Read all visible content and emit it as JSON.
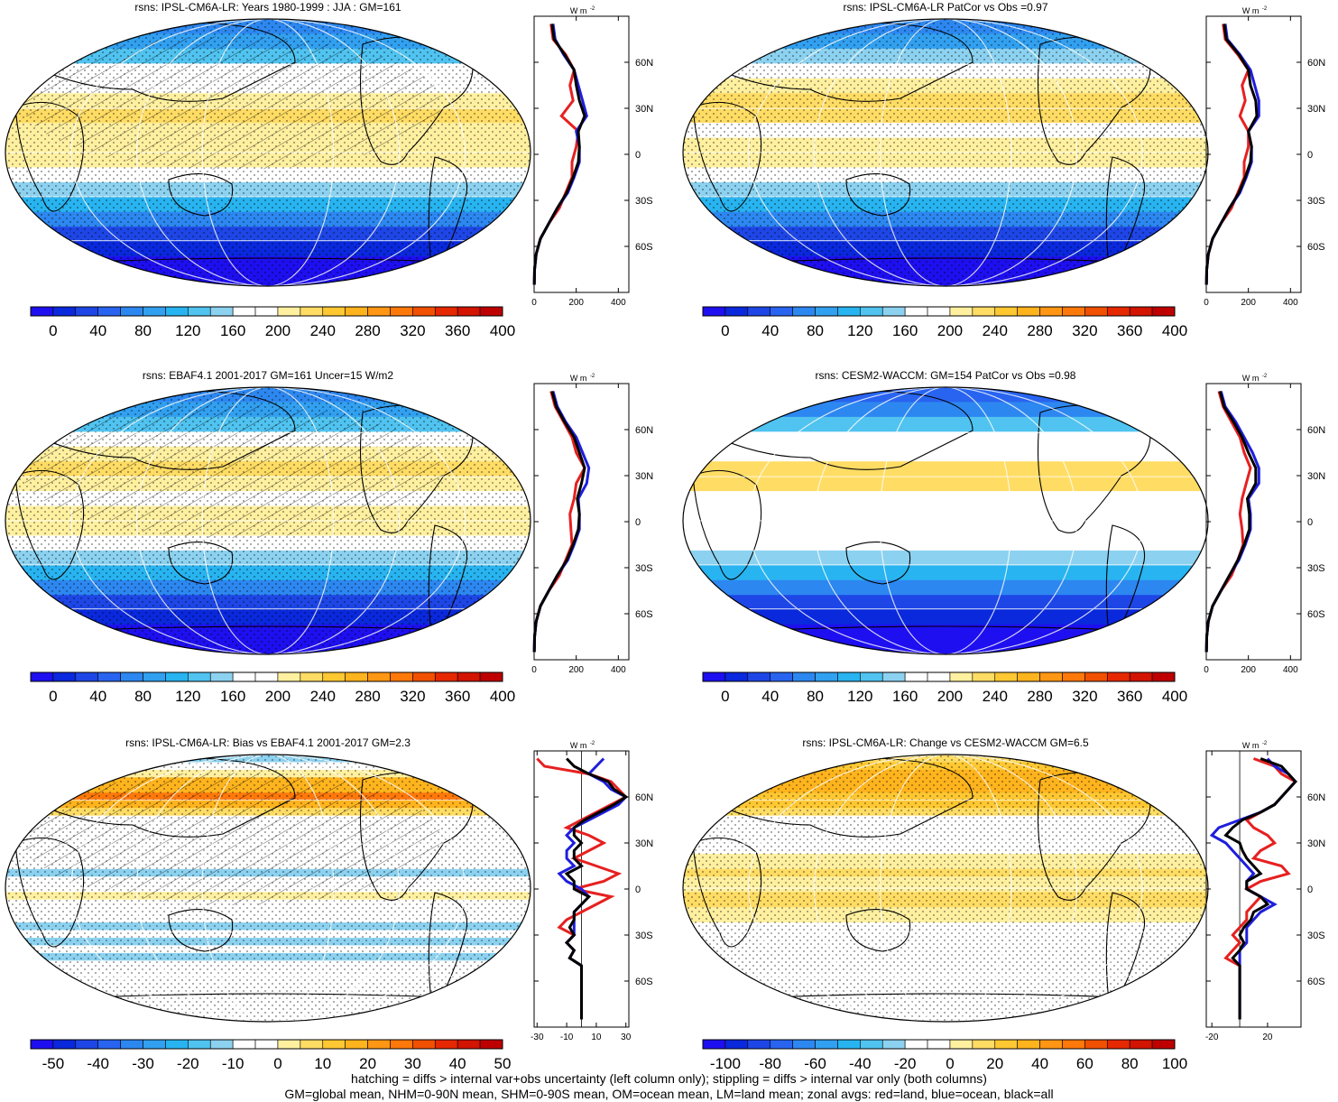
{
  "colors": {
    "abs_scale": [
      "#1e0ff0",
      "#0a28dc",
      "#1e46e6",
      "#2864f0",
      "#2d87f0",
      "#32a0f0",
      "#28b4f0",
      "#50c3f0",
      "#8cd2f0",
      "#ffffff",
      "#ffffff",
      "#fff0a0",
      "#ffdc64",
      "#ffc832",
      "#ffb41e",
      "#ff9614",
      "#ff780a",
      "#f05000",
      "#e62800",
      "#d21400",
      "#be0000"
    ],
    "diff_scale": [
      "#1e0ff0",
      "#0a28dc",
      "#1e46e6",
      "#2864f0",
      "#2d87f0",
      "#32a0f0",
      "#28b4f0",
      "#50c3f0",
      "#8cd2f0",
      "#ffffff",
      "#ffffff",
      "#fff0a0",
      "#ffdc64",
      "#ffc832",
      "#ffb41e",
      "#ff9614",
      "#ff780a",
      "#f05000",
      "#e62800",
      "#d21400",
      "#be0000"
    ],
    "land": "#e62020",
    "ocean": "#1e1edc",
    "all": "#000000"
  },
  "panels": [
    {
      "id": "p1",
      "title": "rsns: IPSL-CM6A-LR: Years 1980-1999 : JJA : GM=161",
      "kind": "abs",
      "cbar_labels": [
        "0",
        "40",
        "80",
        "120",
        "160",
        "200",
        "240",
        "280",
        "320",
        "360",
        "400"
      ],
      "zonal_unit": "W m",
      "zonal_exp": "-2",
      "zonal_xticks": [
        "0",
        "200",
        "400"
      ],
      "zonal_xlim": [
        0,
        450
      ],
      "hatch": true,
      "stipple": true
    },
    {
      "id": "p2",
      "title": "rsns: IPSL-CM6A-LR PatCor vs Obs =0.97",
      "kind": "abs",
      "cbar_labels": [
        "0",
        "40",
        "80",
        "120",
        "160",
        "200",
        "240",
        "280",
        "320",
        "360",
        "400"
      ],
      "zonal_unit": "W m",
      "zonal_exp": "-2",
      "zonal_xticks": [
        "0",
        "200",
        "400"
      ],
      "zonal_xlim": [
        0,
        450
      ],
      "hatch": false,
      "stipple": true
    },
    {
      "id": "p3",
      "title": "rsns: EBAF4.1 2001-2017 GM=161 Uncer=15 W/m2",
      "kind": "abs",
      "cbar_labels": [
        "0",
        "40",
        "80",
        "120",
        "160",
        "200",
        "240",
        "280",
        "320",
        "360",
        "400"
      ],
      "zonal_unit": "W m",
      "zonal_exp": "-2",
      "zonal_xticks": [
        "0",
        "200",
        "400"
      ],
      "zonal_xlim": [
        0,
        450
      ],
      "hatch": true,
      "stipple": true
    },
    {
      "id": "p4",
      "title": "rsns: CESM2-WACCM: GM=154 PatCor vs Obs =0.98",
      "kind": "abs",
      "cbar_labels": [
        "0",
        "40",
        "80",
        "120",
        "160",
        "200",
        "240",
        "280",
        "320",
        "360",
        "400"
      ],
      "zonal_unit": "W m",
      "zonal_exp": "-2",
      "zonal_xticks": [
        "0",
        "200",
        "400"
      ],
      "zonal_xlim": [
        0,
        450
      ],
      "hatch": false,
      "stipple": false
    },
    {
      "id": "p5",
      "title": "rsns: IPSL-CM6A-LR: Bias vs EBAF4.1 2001-2017 GM=2.3",
      "kind": "bias",
      "cbar_labels": [
        "-50",
        "-40",
        "-30",
        "-20",
        "-10",
        "0",
        "10",
        "20",
        "30",
        "40",
        "50"
      ],
      "zonal_unit": "W m",
      "zonal_exp": "-2",
      "zonal_xticks": [
        "-30",
        "-10",
        "10",
        "30"
      ],
      "zonal_xlim": [
        -32,
        32
      ],
      "hatch": true,
      "stipple": true
    },
    {
      "id": "p6",
      "title": "rsns: IPSL-CM6A-LR: Change vs CESM2-WACCM GM=6.5",
      "kind": "change",
      "cbar_labels": [
        "-100",
        "-80",
        "-60",
        "-40",
        "-20",
        "0",
        "20",
        "40",
        "60",
        "80",
        "100"
      ],
      "zonal_unit": "W m",
      "zonal_exp": "-2",
      "zonal_xticks": [
        "-20",
        "20"
      ],
      "zonal_xlim": [
        -24,
        44
      ],
      "hatch": false,
      "stipple": true
    }
  ],
  "lat_labels": [
    "60N",
    "30N",
    "0",
    "30S",
    "60S"
  ],
  "chart_data": [
    {
      "type": "heatmap",
      "title": "rsns: IPSL-CM6A-LR: Years 1980-1999 : JJA : GM=161",
      "legend_ticks": [
        0,
        40,
        80,
        120,
        160,
        200,
        240,
        280,
        320,
        360,
        400
      ],
      "zonal_lat": [
        85,
        75,
        65,
        55,
        45,
        35,
        25,
        15,
        5,
        -5,
        -15,
        -25,
        -35,
        -45,
        -55,
        -65,
        -75,
        -85
      ],
      "zonal_land": [
        80,
        90,
        150,
        190,
        170,
        185,
        130,
        210,
        200,
        180,
        180,
        150,
        120,
        70,
        30,
        10,
        2,
        1
      ],
      "zonal_ocean": [
        90,
        100,
        140,
        190,
        210,
        230,
        250,
        200,
        215,
        215,
        190,
        160,
        110,
        70,
        30,
        10,
        2,
        1
      ],
      "zonal_all": [
        85,
        95,
        145,
        190,
        200,
        215,
        240,
        210,
        215,
        210,
        185,
        155,
        110,
        70,
        30,
        10,
        2,
        1
      ]
    },
    {
      "type": "heatmap",
      "title": "rsns: IPSL-CM6A-LR PatCor vs Obs =0.97",
      "legend_ticks": [
        0,
        40,
        80,
        120,
        160,
        200,
        240,
        280,
        320,
        360,
        400
      ],
      "zonal_lat": [
        85,
        75,
        65,
        55,
        45,
        35,
        25,
        15,
        5,
        -5,
        -15,
        -25,
        -35,
        -45,
        -55,
        -65,
        -75,
        -85
      ],
      "zonal_land": [
        80,
        90,
        150,
        200,
        170,
        185,
        160,
        200,
        200,
        180,
        180,
        150,
        120,
        70,
        30,
        10,
        2,
        1
      ],
      "zonal_ocean": [
        90,
        100,
        160,
        210,
        230,
        250,
        250,
        200,
        215,
        215,
        190,
        160,
        110,
        70,
        30,
        10,
        2,
        1
      ],
      "zonal_all": [
        85,
        95,
        155,
        200,
        210,
        235,
        240,
        200,
        215,
        210,
        185,
        155,
        110,
        70,
        30,
        10,
        2,
        1
      ]
    },
    {
      "type": "heatmap",
      "title": "rsns: EBAF4.1 2001-2017 GM=161 Uncer=15 W/m2",
      "legend_ticks": [
        0,
        40,
        80,
        120,
        160,
        200,
        240,
        280,
        320,
        360,
        400
      ],
      "zonal_lat": [
        85,
        75,
        65,
        55,
        45,
        35,
        25,
        15,
        5,
        -5,
        -15,
        -25,
        -35,
        -45,
        -55,
        -65,
        -75,
        -85
      ],
      "zonal_land": [
        80,
        100,
        140,
        180,
        200,
        240,
        200,
        190,
        170,
        175,
        180,
        150,
        120,
        70,
        30,
        10,
        2,
        1
      ],
      "zonal_ocean": [
        90,
        110,
        150,
        200,
        230,
        260,
        250,
        210,
        215,
        215,
        190,
        160,
        110,
        70,
        30,
        10,
        2,
        1
      ],
      "zonal_all": [
        85,
        105,
        145,
        190,
        215,
        240,
        225,
        205,
        215,
        210,
        185,
        155,
        110,
        70,
        30,
        10,
        2,
        1
      ]
    },
    {
      "type": "heatmap",
      "title": "rsns: CESM2-WACCM: GM=154 PatCor vs Obs =0.98",
      "legend_ticks": [
        0,
        40,
        80,
        120,
        160,
        200,
        240,
        280,
        320,
        360,
        400
      ],
      "zonal_lat": [
        85,
        75,
        65,
        55,
        45,
        35,
        25,
        15,
        5,
        -5,
        -15,
        -25,
        -35,
        -45,
        -55,
        -65,
        -75,
        -85
      ],
      "zonal_land": [
        60,
        80,
        120,
        160,
        180,
        210,
        190,
        170,
        160,
        170,
        175,
        150,
        120,
        70,
        30,
        10,
        2,
        1
      ],
      "zonal_ocean": [
        70,
        90,
        140,
        180,
        220,
        250,
        250,
        200,
        210,
        210,
        185,
        155,
        110,
        70,
        30,
        10,
        2,
        1
      ],
      "zonal_all": [
        65,
        85,
        130,
        170,
        200,
        235,
        235,
        195,
        205,
        205,
        180,
        150,
        110,
        70,
        30,
        10,
        2,
        1
      ]
    },
    {
      "type": "heatmap",
      "title": "rsns: IPSL-CM6A-LR: Bias vs EBAF4.1 2001-2017 GM=2.3",
      "legend_ticks": [
        -50,
        -40,
        -30,
        -20,
        -10,
        0,
        10,
        20,
        30,
        40,
        50
      ],
      "zonal_lat": [
        85,
        80,
        75,
        70,
        65,
        60,
        55,
        50,
        45,
        40,
        35,
        30,
        25,
        20,
        15,
        10,
        5,
        0,
        -5,
        -10,
        -15,
        -20,
        -25,
        -30,
        -35,
        -40,
        -45,
        -50,
        -55,
        -60,
        -65,
        -70,
        -75,
        -80,
        -85
      ],
      "zonal_land": [
        -30,
        -25,
        5,
        20,
        25,
        30,
        20,
        10,
        0,
        -10,
        5,
        15,
        5,
        -5,
        10,
        25,
        15,
        -5,
        20,
        10,
        0,
        -10,
        -15,
        -5,
        -10,
        -5,
        -8,
        0,
        0,
        0,
        0,
        0,
        0,
        0,
        0
      ],
      "zonal_ocean": [
        15,
        10,
        5,
        15,
        20,
        30,
        25,
        15,
        5,
        -5,
        -10,
        -5,
        -10,
        -10,
        -5,
        -15,
        -10,
        0,
        5,
        0,
        -5,
        -5,
        -5,
        -5,
        -10,
        -5,
        -8,
        0,
        0,
        0,
        0,
        0,
        0,
        0,
        0
      ],
      "zonal_all": [
        -10,
        -5,
        5,
        18,
        22,
        30,
        22,
        12,
        2,
        -5,
        -5,
        0,
        -5,
        -5,
        0,
        -10,
        -5,
        -5,
        5,
        0,
        -5,
        -5,
        -8,
        -5,
        -10,
        -5,
        -8,
        0,
        0,
        0,
        0,
        0,
        0,
        0,
        0
      ]
    },
    {
      "type": "heatmap",
      "title": "rsns: IPSL-CM6A-LR: Change vs CESM2-WACCM GM=6.5",
      "legend_ticks": [
        -100,
        -80,
        -60,
        -40,
        -20,
        0,
        20,
        40,
        60,
        80,
        100
      ],
      "zonal_lat": [
        85,
        80,
        75,
        70,
        65,
        60,
        55,
        50,
        45,
        40,
        35,
        30,
        25,
        20,
        15,
        10,
        5,
        0,
        -5,
        -10,
        -15,
        -20,
        -25,
        -30,
        -35,
        -40,
        -45,
        -50,
        -55,
        -60,
        -65,
        -70,
        -75,
        -80,
        -85
      ],
      "zonal_land": [
        10,
        25,
        30,
        40,
        35,
        30,
        25,
        15,
        5,
        10,
        20,
        25,
        15,
        10,
        30,
        35,
        15,
        5,
        15,
        10,
        5,
        5,
        0,
        -5,
        0,
        -5,
        -10,
        0,
        0,
        0,
        0,
        0,
        0,
        0,
        0
      ],
      "zonal_ocean": [
        20,
        25,
        35,
        40,
        35,
        30,
        25,
        15,
        0,
        -15,
        -20,
        -10,
        -5,
        0,
        5,
        10,
        5,
        5,
        15,
        25,
        15,
        10,
        5,
        5,
        5,
        0,
        0,
        0,
        0,
        0,
        0,
        0,
        0,
        0,
        0
      ],
      "zonal_all": [
        15,
        30,
        35,
        40,
        35,
        30,
        25,
        15,
        2,
        -5,
        -10,
        0,
        2,
        5,
        10,
        15,
        5,
        5,
        15,
        20,
        10,
        8,
        3,
        0,
        3,
        0,
        -5,
        0,
        0,
        0,
        0,
        0,
        0,
        0,
        0
      ]
    }
  ],
  "footer": {
    "line1": "hatching = diffs > internal var+obs uncertainty (left column only); stippling = diffs > internal var only (both columns)",
    "line2": "GM=global mean, NHM=0-90N mean, SHM=0-90S mean, OM=ocean mean, LM=land mean; zonal avgs: red=land, blue=ocean, black=all"
  }
}
